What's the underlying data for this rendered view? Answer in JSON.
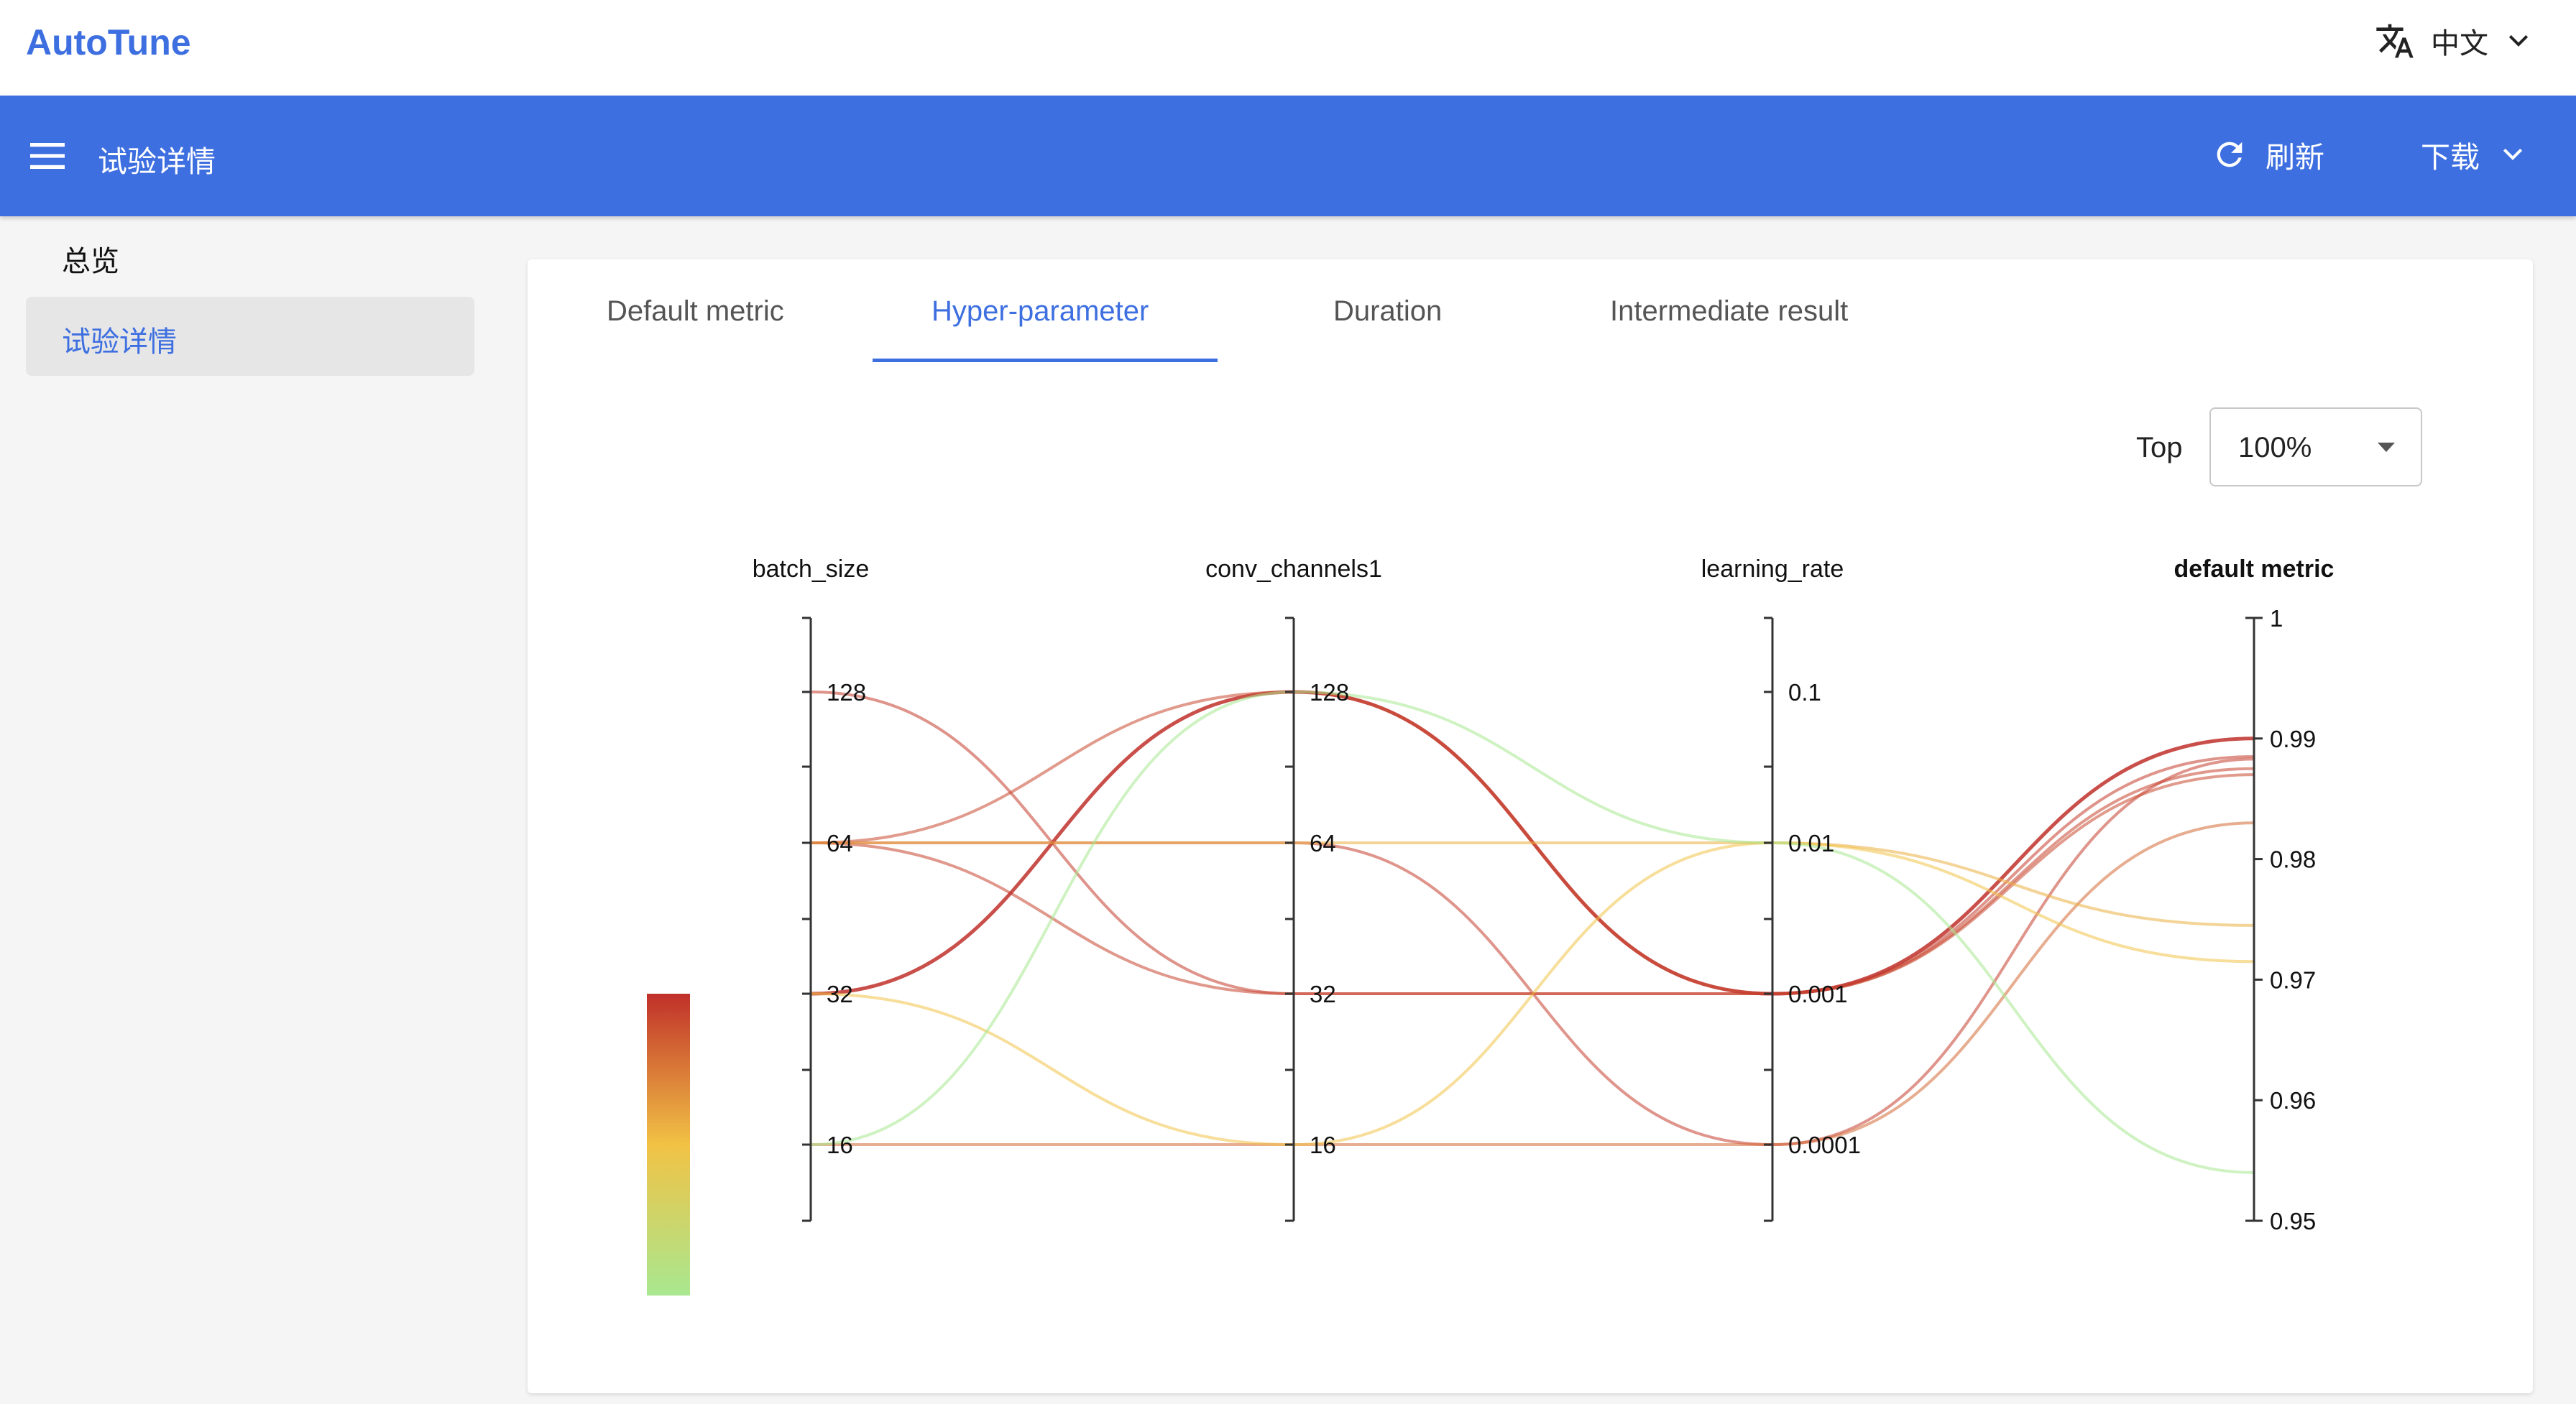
{
  "app": {
    "logo": "AutoTune",
    "language": "中文"
  },
  "toolbar": {
    "title": "试验详情",
    "refresh_label": "刷新",
    "download_label": "下载"
  },
  "sidebar": {
    "items": [
      {
        "label": "总览",
        "active": false
      },
      {
        "label": "试验详情",
        "active": true
      }
    ]
  },
  "tabs": [
    {
      "label": "Default metric",
      "active": false
    },
    {
      "label": "Hyper-parameter",
      "active": true
    },
    {
      "label": "Duration",
      "active": false
    },
    {
      "label": "Intermediate result",
      "active": false
    }
  ],
  "filter": {
    "label": "Top",
    "selected": "100%"
  },
  "colors": {
    "accent": "#3d6fe0",
    "scale_high": "#c0302a",
    "scale_mid": "#f2c245",
    "scale_low": "#a8e890"
  },
  "chart_data": {
    "type": "parallel_coordinates",
    "axes": [
      {
        "name": "batch_size",
        "ticks": [
          "128",
          "64",
          "32",
          "16"
        ]
      },
      {
        "name": "conv_channels1",
        "ticks": [
          "128",
          "64",
          "32",
          "16"
        ]
      },
      {
        "name": "learning_rate",
        "ticks": [
          "0.1",
          "0.01",
          "0.001",
          "0.0001"
        ]
      },
      {
        "name": "default metric",
        "ticks": [
          "1",
          "0.99",
          "0.98",
          "0.97",
          "0.96",
          "0.95"
        ],
        "range": [
          0.95,
          1
        ]
      }
    ],
    "trials": [
      {
        "batch_size": "128",
        "conv_channels1": "32",
        "learning_rate": "0.001",
        "default_metric": 0.9885
      },
      {
        "batch_size": "64",
        "conv_channels1": "32",
        "learning_rate": "0.001",
        "default_metric": 0.9875
      },
      {
        "batch_size": "32",
        "conv_channels1": "128",
        "learning_rate": "0.001",
        "default_metric": 0.99
      },
      {
        "batch_size": "64",
        "conv_channels1": "64",
        "learning_rate": "0.0001",
        "default_metric": 0.9883
      },
      {
        "batch_size": "16",
        "conv_channels1": "16",
        "learning_rate": "0.0001",
        "default_metric": 0.983
      },
      {
        "batch_size": "64",
        "conv_channels1": "128",
        "learning_rate": "0.001",
        "default_metric": 0.987
      },
      {
        "batch_size": "64",
        "conv_channels1": "64",
        "learning_rate": "0.01",
        "default_metric": 0.9745
      },
      {
        "batch_size": "32",
        "conv_channels1": "16",
        "learning_rate": "0.01",
        "default_metric": 0.9715
      },
      {
        "batch_size": "16",
        "conv_channels1": "128",
        "learning_rate": "0.01",
        "default_metric": 0.954
      }
    ]
  }
}
